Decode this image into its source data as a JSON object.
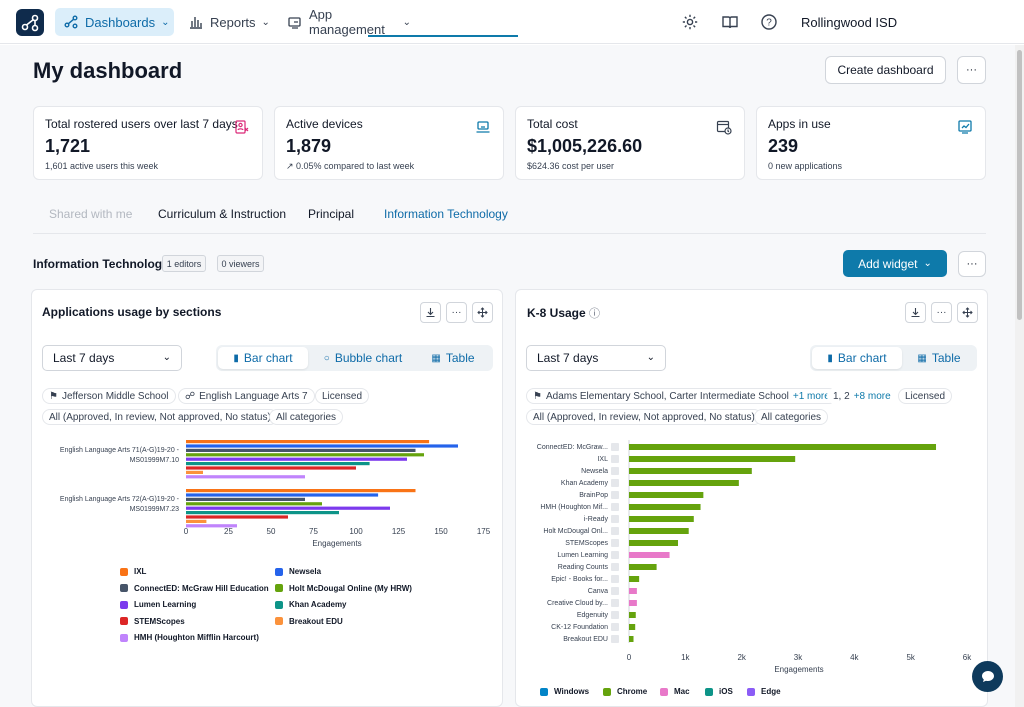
{
  "nav": {
    "dashboards": "Dashboards",
    "reports": "Reports",
    "app_management": "App management",
    "org": "Rollingwood ISD"
  },
  "page": {
    "title": "My dashboard",
    "create_button": "Create dashboard",
    "more": "···"
  },
  "cards": [
    {
      "title": "Total rostered users over last 7 days",
      "value": "1,721",
      "sub": "1,601 active users this week",
      "icon": "users-icon",
      "icon_color": "#db2777"
    },
    {
      "title": "Active devices",
      "value": "1,879",
      "sub": "↗ 0.05% compared to last week",
      "icon": "devices-icon",
      "icon_color": "#0e7aaa"
    },
    {
      "title": "Total cost",
      "value": "$1,005,226.60",
      "sub": "$624.36 cost per user",
      "icon": "cost-icon",
      "icon_color": "#374151"
    },
    {
      "title": "Apps in use",
      "value": "239",
      "sub": "0 new applications",
      "icon": "apps-icon",
      "icon_color": "#0e7aaa"
    }
  ],
  "tabs": [
    "Shared with me",
    "Curriculum & Instruction",
    "Principal",
    "Information Technology"
  ],
  "section": {
    "title": "Information Technology",
    "editors": "1 editors",
    "viewers": "0 viewers",
    "add_widget": "Add widget"
  },
  "left_panel": {
    "title": "Applications usage by sections",
    "range": "Last 7 days",
    "views": [
      "Bar chart",
      "Bubble chart",
      "Table"
    ],
    "chips": [
      "Jefferson Middle School",
      "English Language Arts 7",
      "Licensed",
      "All (Approved, In review, Not approved, No status)",
      "All categories"
    ]
  },
  "right_panel": {
    "title": "K-8 Usage",
    "range": "Last 7 days",
    "views": [
      "Bar chart",
      "Table"
    ],
    "chip_school": "Adams Elementary School, Carter Intermediate School",
    "chip_school_more": "+1 more",
    "chip_grade": "1, 2",
    "chip_grade_more": "+8 more",
    "chips": [
      "Licensed",
      "All (Approved, In review, Not approved, No status)",
      "All categories"
    ]
  },
  "chart_data": [
    {
      "type": "bar",
      "orientation": "horizontal",
      "categories": [
        "English Language Arts 71(A-G)19-20 - MS01999M7.10",
        "English Language Arts 72(A-G)19-20 - MS01999M7.23"
      ],
      "category_lines": [
        [
          "English Language Arts 71(A-G)19-20 -",
          "MS01999M7.10"
        ],
        [
          "English Language Arts 72(A-G)19-20 -",
          "MS01999M7.23"
        ]
      ],
      "xlabel": "Engagements",
      "xlim": [
        0,
        180
      ],
      "xticks": [
        0,
        25,
        50,
        75,
        100,
        125,
        150,
        175
      ],
      "series": [
        {
          "name": "IXL",
          "color": "#f97316",
          "values": [
            143,
            135
          ]
        },
        {
          "name": "Newsela",
          "color": "#2563eb",
          "values": [
            160,
            113
          ]
        },
        {
          "name": "ConnectED: McGraw Hill Education",
          "color": "#475569",
          "values": [
            135,
            70
          ]
        },
        {
          "name": "Holt McDougal Online (My HRW)",
          "color": "#65a30d",
          "values": [
            140,
            80
          ]
        },
        {
          "name": "Lumen Learning",
          "color": "#7c3aed",
          "values": [
            130,
            120
          ]
        },
        {
          "name": "Khan Academy",
          "color": "#0d9488",
          "values": [
            108,
            90
          ]
        },
        {
          "name": "STEMScopes",
          "color": "#dc2626",
          "values": [
            100,
            60
          ]
        },
        {
          "name": "Breakout EDU",
          "color": "#fb923c",
          "values": [
            10,
            12
          ]
        },
        {
          "name": "HMH (Houghton Mifflin Harcourt)",
          "color": "#c084fc",
          "values": [
            70,
            30
          ]
        }
      ]
    },
    {
      "type": "bar",
      "orientation": "horizontal",
      "categories": [
        "ConnectED: McGraw...",
        "IXL",
        "Newsela",
        "Khan Academy",
        "BrainPop",
        "HMH (Houghton Mif...",
        "i-Ready",
        "Holt McDougal Onl...",
        "STEMScopes",
        "Lumen Learning",
        "Reading Counts",
        "Epic! - Books for...",
        "Canva",
        "Creative Cloud by...",
        "Edgenuity",
        "CK-12 Foundation",
        "Breakout EDU"
      ],
      "values": [
        5450,
        2950,
        2180,
        1950,
        1320,
        1270,
        1150,
        1060,
        870,
        720,
        490,
        180,
        140,
        140,
        120,
        110,
        80
      ],
      "bar_series": [
        "Chrome",
        "Chrome",
        "Chrome",
        "Chrome",
        "Chrome",
        "Chrome",
        "Chrome",
        "Chrome",
        "Chrome",
        "Mac",
        "Chrome",
        "Chrome",
        "Mac",
        "Mac",
        "Chrome",
        "Chrome",
        "Chrome"
      ],
      "xlabel": "Engagements",
      "xlim": [
        0,
        6000
      ],
      "xticks": [
        "0",
        "1k",
        "2k",
        "3k",
        "4k",
        "5k",
        "6k"
      ],
      "legend": [
        {
          "name": "Windows",
          "color": "#0284c7"
        },
        {
          "name": "Chrome",
          "color": "#65a30d"
        },
        {
          "name": "Mac",
          "color": "#e879c9"
        },
        {
          "name": "iOS",
          "color": "#0d9488"
        },
        {
          "name": "Edge",
          "color": "#8b5cf6"
        }
      ]
    }
  ]
}
